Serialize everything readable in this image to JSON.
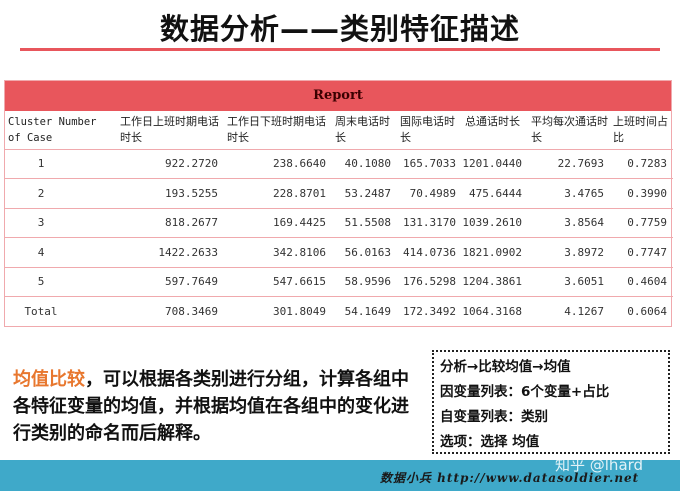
{
  "title": "数据分析——类别特征描述",
  "report": {
    "heading": "Report",
    "columns": [
      "Cluster Number of Case",
      "工作日上班时期电话时长",
      "工作日下班时期电话时长",
      "周末电话时长",
      "国际电话时长",
      "总通话时长",
      "平均每次通话时长",
      "上班时间占比"
    ],
    "rows": [
      [
        "1",
        "922.2720",
        "238.6640",
        "40.1080",
        "165.7033",
        "1201.0440",
        "22.7693",
        "0.7283"
      ],
      [
        "2",
        "193.5255",
        "228.8701",
        "53.2487",
        "70.4989",
        "475.6444",
        "3.4765",
        "0.3990"
      ],
      [
        "3",
        "818.2677",
        "169.4425",
        "51.5508",
        "131.3170",
        "1039.2610",
        "3.8564",
        "0.7759"
      ],
      [
        "4",
        "1422.2633",
        "342.8106",
        "56.0163",
        "414.0736",
        "1821.0902",
        "3.8972",
        "0.7747"
      ],
      [
        "5",
        "597.7649",
        "547.6615",
        "58.9596",
        "176.5298",
        "1204.3861",
        "3.6051",
        "0.4604"
      ],
      [
        "Total",
        "708.3469",
        "301.8049",
        "54.1649",
        "172.3492",
        "1064.3168",
        "4.1267",
        "0.6064"
      ]
    ]
  },
  "note": {
    "highlight": "均值比较",
    "text": "，可以根据各类别进行分组，计算各组中各特征变量的均值，并根据均值在各组中的变化进行类别的命名而后解释。"
  },
  "steps": [
    "分析→比较均值→均值",
    "因变量列表：6个变量+占比",
    "自变量列表：类别",
    "选项：选择 均值"
  ],
  "footer": {
    "text": "数据小兵 http://www.datasoldier.net",
    "watermark": "知乎 @lhard"
  },
  "colors": {
    "accent": "#e8565c",
    "highlight": "#e8772e",
    "footer": "#3fa9c9"
  }
}
